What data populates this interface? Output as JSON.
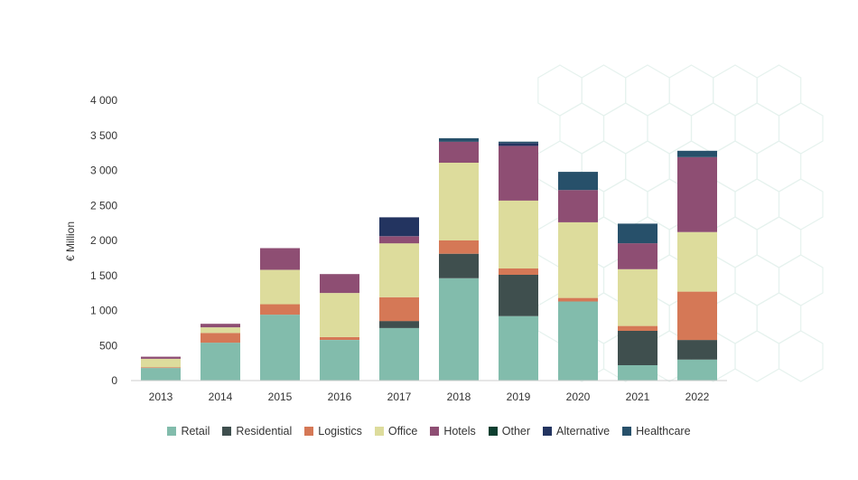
{
  "chart_data": {
    "type": "bar",
    "stacked": true,
    "ylabel": "€ Million",
    "xlabel": "",
    "ylim": [
      0,
      4000
    ],
    "yticks": [
      0,
      500,
      1000,
      1500,
      2000,
      2500,
      3000,
      3500,
      4000
    ],
    "ytick_labels": [
      "0",
      "500",
      "1 000",
      "1 500",
      "2 000",
      "2 500",
      "3 000",
      "3 500",
      "4 000"
    ],
    "grid": false,
    "legend_position": "bottom",
    "categories": [
      "2013",
      "2014",
      "2015",
      "2016",
      "2017",
      "2018",
      "2019",
      "2020",
      "2021",
      "2022"
    ],
    "series": [
      {
        "name": "Retail",
        "color": "#82bcac",
        "values": [
          180,
          540,
          940,
          580,
          750,
          1460,
          920,
          1130,
          220,
          300
        ]
      },
      {
        "name": "Residential",
        "color": "#3f4f4e",
        "values": [
          0,
          0,
          0,
          0,
          100,
          350,
          590,
          0,
          490,
          280
        ]
      },
      {
        "name": "Logistics",
        "color": "#d57856",
        "values": [
          10,
          140,
          150,
          40,
          340,
          190,
          90,
          50,
          70,
          690
        ]
      },
      {
        "name": "Office",
        "color": "#dddc9c",
        "values": [
          120,
          80,
          490,
          630,
          770,
          1110,
          970,
          1080,
          810,
          850
        ]
      },
      {
        "name": "Hotels",
        "color": "#8e4e73",
        "values": [
          30,
          50,
          310,
          270,
          100,
          300,
          780,
          460,
          370,
          1070
        ]
      },
      {
        "name": "Other",
        "color": "#0d3f30",
        "values": [
          0,
          0,
          0,
          0,
          0,
          0,
          0,
          0,
          0,
          0
        ]
      },
      {
        "name": "Alternative",
        "color": "#233460",
        "values": [
          0,
          0,
          0,
          0,
          270,
          0,
          40,
          0,
          0,
          0
        ]
      },
      {
        "name": "Healthcare",
        "color": "#27506a",
        "values": [
          0,
          0,
          0,
          0,
          0,
          50,
          20,
          260,
          280,
          90
        ]
      }
    ]
  }
}
